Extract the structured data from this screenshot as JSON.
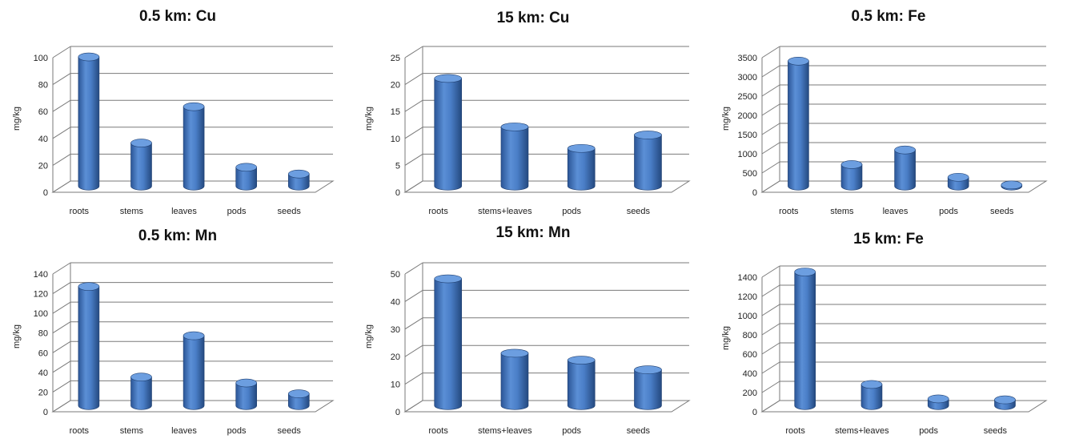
{
  "chart_data": [
    {
      "type": "bar",
      "title": "0.5 km: Cu",
      "ylabel": "mg/kg",
      "xlabel": "",
      "ylim": [
        0,
        100
      ],
      "yticks": [
        "0",
        "20",
        "40",
        "60",
        "80",
        "100"
      ],
      "categories": [
        "roots",
        "stems",
        "leaves",
        "pods",
        "seeds"
      ],
      "values": [
        96,
        32,
        59,
        14,
        9
      ],
      "bar_color": "#3a6eb5"
    },
    {
      "type": "bar",
      "title": "15 km: Cu",
      "ylabel": "mg/kg",
      "xlabel": "",
      "ylim": [
        0,
        25
      ],
      "yticks": [
        "0",
        "5",
        "10",
        "15",
        "20",
        "25"
      ],
      "categories": [
        "roots",
        "stems+leaves",
        "pods",
        "seeds"
      ],
      "values": [
        20,
        11,
        7,
        9.5
      ],
      "bar_color": "#3a6eb5"
    },
    {
      "type": "bar",
      "title": "0.5 km: Fe",
      "ylabel": "mg/kg",
      "xlabel": "",
      "ylim": [
        0,
        3500
      ],
      "yticks": [
        "0",
        "500",
        "1000",
        "1500",
        "2000",
        "2500",
        "3000",
        "3500"
      ],
      "categories": [
        "roots",
        "stems",
        "leaves",
        "pods",
        "seeds"
      ],
      "values": [
        3250,
        560,
        940,
        230,
        30
      ],
      "bar_color": "#3a6eb5"
    },
    {
      "type": "bar",
      "title": "0.5 km: Mn",
      "ylabel": "mg/kg",
      "xlabel": "",
      "ylim": [
        0,
        140
      ],
      "yticks": [
        "0",
        "20",
        "40",
        "60",
        "80",
        "100",
        "120",
        "140"
      ],
      "categories": [
        "roots",
        "stems",
        "leaves",
        "pods",
        "seeds"
      ],
      "values": [
        121,
        29,
        71,
        23,
        12
      ],
      "bar_color": "#3a6eb5"
    },
    {
      "type": "bar",
      "title": "15 km: Mn",
      "ylabel": "mg/kg",
      "xlabel": "",
      "ylim": [
        0,
        50
      ],
      "yticks": [
        "0",
        "10",
        "20",
        "30",
        "40",
        "50"
      ],
      "categories": [
        "roots",
        "stems+leaves",
        "pods",
        "seeds"
      ],
      "values": [
        46,
        19,
        16.5,
        13
      ],
      "bar_color": "#3a6eb5"
    },
    {
      "type": "bar",
      "title": "15 km: Fe",
      "ylabel": "mg/kg",
      "xlabel": "",
      "ylim": [
        0,
        1400
      ],
      "yticks": [
        "0",
        "200",
        "400",
        "600",
        "800",
        "1000",
        "1200",
        "1400"
      ],
      "categories": [
        "roots",
        "stems+leaves",
        "pods",
        "seeds"
      ],
      "values": [
        1390,
        220,
        70,
        60
      ],
      "bar_color": "#3a6eb5"
    }
  ]
}
